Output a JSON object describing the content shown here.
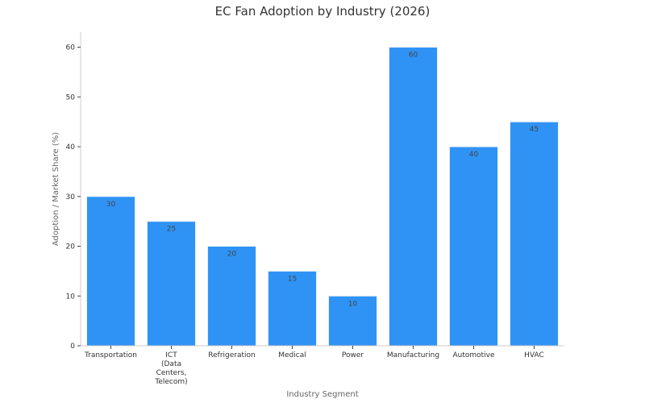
{
  "chart_data": {
    "type": "bar",
    "title": "EC Fan Adoption by Industry (2026)",
    "xlabel": "Industry Segment",
    "ylabel": "Adoption / Market Share (%)",
    "categories": [
      "Transportation",
      "ICT (Data Centers, Telecom)",
      "Refrigeration",
      "Medical",
      "Power",
      "Manufacturing",
      "Automotive",
      "HVAC"
    ],
    "category_lines": [
      [
        "Transportation"
      ],
      [
        "ICT",
        "(Data",
        "Centers,",
        "Telecom)"
      ],
      [
        "Refrigeration"
      ],
      [
        "Medical"
      ],
      [
        "Power"
      ],
      [
        "Manufacturing"
      ],
      [
        "Automotive"
      ],
      [
        "HVAC"
      ]
    ],
    "values": [
      30,
      25,
      20,
      15,
      10,
      60,
      40,
      45
    ],
    "data_labels": [
      "30",
      "25",
      "20",
      "15",
      "10",
      "60",
      "40",
      "45"
    ],
    "ylim": [
      0,
      63
    ],
    "yticks": [
      0,
      10,
      20,
      30,
      40,
      50,
      60
    ],
    "bar_color": "#2f93f5",
    "grid": false,
    "legend": "none"
  }
}
